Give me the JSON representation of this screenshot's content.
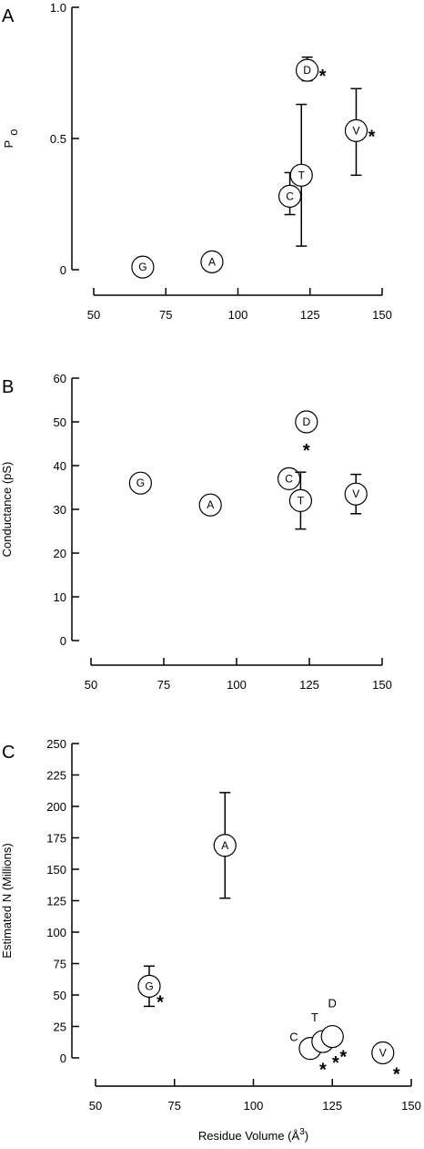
{
  "chart_data": [
    {
      "type": "scatter",
      "panel_label": "A",
      "ylabel": "P",
      "ylabel_sub": "o",
      "xlabel": "",
      "xlim": [
        50,
        150
      ],
      "ylim": [
        0,
        1.0
      ],
      "x_ticks": [
        50,
        75,
        100,
        125,
        150
      ],
      "y_ticks": [
        0,
        0.5,
        1.0
      ],
      "y_tick_labels": [
        "0",
        "0.5",
        "1.0"
      ],
      "grid": false,
      "points": [
        {
          "label": "G",
          "x": 67,
          "y": 0.01
        },
        {
          "label": "A",
          "x": 91,
          "y": 0.03
        },
        {
          "label": "C",
          "x": 118,
          "y": 0.28,
          "err_low": 0.21,
          "err_high": 0.37
        },
        {
          "label": "T",
          "x": 122,
          "y": 0.36,
          "err_low": 0.09,
          "err_high": 0.63
        },
        {
          "label": "D",
          "x": 124,
          "y": 0.76,
          "err_low": 0.72,
          "err_high": 0.81,
          "star": "*"
        },
        {
          "label": "V",
          "x": 141,
          "y": 0.53,
          "err_low": 0.36,
          "err_high": 0.69,
          "star": "*"
        }
      ]
    },
    {
      "type": "scatter",
      "panel_label": "B",
      "ylabel": "Conductance (pS)",
      "xlabel": "",
      "xlim": [
        50,
        150
      ],
      "ylim": [
        0,
        60
      ],
      "x_ticks": [
        50,
        75,
        100,
        125,
        150
      ],
      "y_ticks": [
        0,
        10,
        20,
        30,
        40,
        50,
        60
      ],
      "y_tick_labels": [
        "0",
        "10",
        "20",
        "30",
        "40",
        "50",
        "60"
      ],
      "grid": false,
      "points": [
        {
          "label": "G",
          "x": 67,
          "y": 36
        },
        {
          "label": "A",
          "x": 91,
          "y": 31
        },
        {
          "label": "C",
          "x": 118,
          "y": 37
        },
        {
          "label": "T",
          "x": 122,
          "y": 32,
          "err_low": 25.5,
          "err_high": 38.5
        },
        {
          "label": "D",
          "x": 124,
          "y": 50,
          "star": "*"
        },
        {
          "label": "V",
          "x": 141,
          "y": 33.5,
          "err_low": 29,
          "err_high": 38
        }
      ]
    },
    {
      "type": "scatter",
      "panel_label": "C",
      "ylabel": "Estimated N (Millions)",
      "xlabel": "Residue Volume (Å",
      "xlabel_sup": "3",
      "xlabel_close": ")",
      "xlim": [
        50,
        150
      ],
      "ylim": [
        0,
        250
      ],
      "x_ticks": [
        50,
        75,
        100,
        125,
        150
      ],
      "y_ticks": [
        0,
        25,
        50,
        75,
        100,
        125,
        150,
        175,
        200,
        225,
        250
      ],
      "y_tick_labels": [
        "0",
        "25",
        "50",
        "75",
        "100",
        "125",
        "150",
        "175",
        "200",
        "225",
        "250"
      ],
      "grid": false,
      "points": [
        {
          "label": "G",
          "x": 67,
          "y": 57,
          "err_low": 41,
          "err_high": 73,
          "star": "*"
        },
        {
          "label": "A",
          "x": 91,
          "y": 169,
          "err_low": 127,
          "err_high": 211
        },
        {
          "label": "C",
          "x": 118,
          "y": 7.5,
          "star": "*",
          "label_outside": true
        },
        {
          "label": "T",
          "x": 122,
          "y": 13,
          "star": "*",
          "label_outside": true
        },
        {
          "label": "D",
          "x": 125,
          "y": 17,
          "star": "*",
          "label_outside": true
        },
        {
          "label": "V",
          "x": 141,
          "y": 4,
          "star": "*"
        }
      ]
    }
  ]
}
